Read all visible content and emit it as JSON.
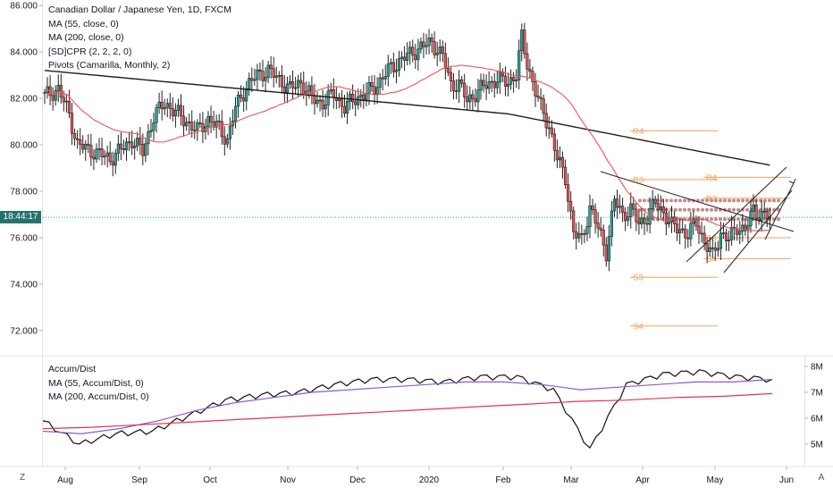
{
  "header": {
    "title": "Canadian Dollar / Japanese Yen, 1D, FXCM",
    "ma55": "MA (55, close, 0)",
    "ma200": "MA (200, close, 0)",
    "cpr": "[SD]CPR (2, 2, 2, 0)",
    "pivots": "Pivots (Camarilla, Monthly, 2)"
  },
  "indicator_legend": {
    "ad": "Accum/Dist",
    "ad_ma55": "MA (55, Accum/Dist, 0)",
    "ad_ma200": "MA (200, Accum/Dist, 0)"
  },
  "time_badge": "18:44:17",
  "corner_left": "Z",
  "corner_right": "A",
  "colors": {
    "up": "#26a69a",
    "down": "#ef5350",
    "candle_body": "#111111",
    "ma55": "#f05454",
    "ma200": "#1b1b1b",
    "pivot": "#f7a15b",
    "cpr": "#c58a84",
    "ad": "#111111",
    "ad_ma55": "#8a5cc9",
    "ad_ma200": "#e2344f",
    "teal_line": "#26a69a"
  },
  "chart_data": [
    {
      "type": "candlestick",
      "title": "Canadian Dollar / Japanese Yen, 1D, FXCM",
      "x_ticks": [
        "Aug",
        "Sep",
        "Oct",
        "Nov",
        "Dec",
        "2020",
        "Feb",
        "Mar",
        "Apr",
        "May",
        "Jun"
      ],
      "y_ticks": [
        "86.000",
        "84.000",
        "82.000",
        "80.000",
        "78.000",
        "76.000",
        "74.000",
        "72.000"
      ],
      "ylim": [
        71.0,
        86.0
      ],
      "current_price": 76.88,
      "close_series_day_index_value": [
        [
          0,
          82.1
        ],
        [
          5,
          82.4
        ],
        [
          9,
          81.3
        ],
        [
          12,
          80.0
        ],
        [
          16,
          79.8
        ],
        [
          20,
          79.6
        ],
        [
          24,
          79.4
        ],
        [
          28,
          79.8
        ],
        [
          32,
          80.2
        ],
        [
          36,
          79.7
        ],
        [
          40,
          81.2
        ],
        [
          44,
          81.8
        ],
        [
          48,
          81.4
        ],
        [
          52,
          81.0
        ],
        [
          56,
          80.6
        ],
        [
          60,
          81.1
        ],
        [
          64,
          80.7
        ],
        [
          67,
          80.2
        ],
        [
          70,
          81.6
        ],
        [
          74,
          82.5
        ],
        [
          78,
          83.0
        ],
        [
          82,
          83.2
        ],
        [
          86,
          82.8
        ],
        [
          90,
          82.4
        ],
        [
          94,
          82.7
        ],
        [
          98,
          82.0
        ],
        [
          102,
          81.8
        ],
        [
          106,
          82.2
        ],
        [
          110,
          81.6
        ],
        [
          114,
          82.0
        ],
        [
          118,
          82.2
        ],
        [
          122,
          82.6
        ],
        [
          126,
          83.2
        ],
        [
          130,
          83.6
        ],
        [
          134,
          83.9
        ],
        [
          138,
          84.2
        ],
        [
          142,
          84.4
        ],
        [
          146,
          83.8
        ],
        [
          149,
          82.6
        ],
        [
          152,
          82.6
        ],
        [
          155,
          81.9
        ],
        [
          158,
          82.2
        ],
        [
          162,
          82.6
        ],
        [
          166,
          82.8
        ],
        [
          170,
          82.7
        ],
        [
          173,
          83.0
        ],
        [
          175,
          84.6
        ],
        [
          177,
          83.5
        ],
        [
          180,
          82.3
        ],
        [
          182,
          81.6
        ],
        [
          185,
          80.8
        ],
        [
          188,
          79.4
        ],
        [
          191,
          78.6
        ],
        [
          194,
          76.2
        ],
        [
          197,
          75.9
        ],
        [
          200,
          77.3
        ],
        [
          203,
          76.4
        ],
        [
          206,
          75.4
        ],
        [
          209,
          77.6
        ],
        [
          212,
          77.0
        ],
        [
          215,
          77.2
        ],
        [
          218,
          76.6
        ],
        [
          221,
          76.9
        ],
        [
          224,
          77.5
        ],
        [
          227,
          77.1
        ],
        [
          230,
          76.5
        ],
        [
          233,
          76.4
        ],
        [
          236,
          76.1
        ],
        [
          239,
          76.7
        ],
        [
          242,
          75.8
        ],
        [
          245,
          75.2
        ],
        [
          248,
          76.2
        ],
        [
          251,
          75.9
        ],
        [
          254,
          76.5
        ],
        [
          257,
          76.3
        ],
        [
          260,
          77.2
        ],
        [
          263,
          77.0
        ],
        [
          266,
          76.9
        ]
      ]
    },
    {
      "type": "line",
      "title": "Accum/Dist",
      "y_ticks": [
        "8M",
        "7M",
        "6M",
        "5M"
      ],
      "series": [
        {
          "name": "Accum/Dist",
          "values": [
            5.9,
            5.0,
            5.4,
            5.5,
            6.1,
            6.7,
            6.9,
            7.0,
            7.3,
            7.5,
            7.5,
            7.4,
            7.6,
            7.6,
            7.1,
            4.8,
            7.3,
            7.7,
            7.8,
            7.6,
            7.5
          ]
        },
        {
          "name": "MA (55, Accum/Dist, 0)",
          "values": [
            5.5,
            5.4,
            5.6,
            5.9,
            6.3,
            6.6,
            6.8,
            7.0,
            7.1,
            7.2,
            7.3,
            7.4,
            7.4,
            7.3,
            7.1,
            7.2,
            7.3,
            7.4,
            7.4,
            7.5
          ]
        },
        {
          "name": "MA (200, Accum/Dist, 0)",
          "values": [
            5.6,
            5.65,
            5.75,
            5.85,
            5.95,
            6.05,
            6.15,
            6.25,
            6.35,
            6.45,
            6.55,
            6.65,
            6.7,
            6.8,
            6.85,
            6.95
          ]
        }
      ]
    }
  ],
  "pivot_levels": [
    {
      "label": "R4",
      "price": 80.6
    },
    {
      "label": "R3",
      "price": 78.5
    },
    {
      "label": "S3",
      "price": 74.3
    },
    {
      "label": "S4",
      "price": 72.2
    },
    {
      "label": "R4",
      "price": 78.6
    },
    {
      "label": "R3",
      "price": 77.7
    },
    {
      "label": "S3",
      "price": 76.0
    },
    {
      "label": "S4",
      "price": 75.1
    }
  ]
}
